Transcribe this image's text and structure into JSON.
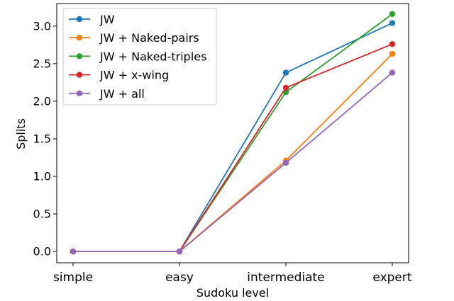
{
  "chart_data": {
    "type": "line",
    "title": "",
    "xlabel": "Sudoku level",
    "ylabel": "Splits",
    "categories": [
      "simple",
      "easy",
      "intermediate",
      "expert"
    ],
    "ylim": [
      -0.15,
      3.3
    ],
    "yticks": [
      0.0,
      0.5,
      1.0,
      1.5,
      2.0,
      2.5,
      3.0
    ],
    "ytick_labels": [
      "0.0",
      "0.5",
      "1.0",
      "1.5",
      "2.0",
      "2.5",
      "3.0"
    ],
    "grid": false,
    "legend_position": "top-left",
    "series": [
      {
        "name": "JW",
        "color": "#1f77b4",
        "values": [
          0.0,
          0.0,
          2.38,
          3.04
        ]
      },
      {
        "name": "JW + Naked-pairs",
        "color": "#ff7f0e",
        "values": [
          0.0,
          0.0,
          1.21,
          2.63
        ]
      },
      {
        "name": "JW + Naked-triples",
        "color": "#2ca02c",
        "values": [
          0.0,
          0.0,
          2.12,
          3.16
        ]
      },
      {
        "name": "JW + x-wing",
        "color": "#d62728",
        "values": [
          0.0,
          0.0,
          2.18,
          2.76
        ]
      },
      {
        "name": "JW + all",
        "color": "#9467bd",
        "values": [
          0.0,
          0.0,
          1.18,
          2.38
        ]
      }
    ]
  }
}
